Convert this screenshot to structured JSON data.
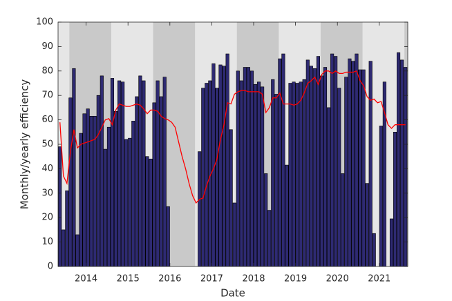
{
  "chart_data": {
    "type": "bar",
    "xlabel": "Date",
    "ylabel": "Monthly/yearly efficiency",
    "xlim": [
      2013.33,
      2021.68
    ],
    "xticks": [
      2014,
      2015,
      2016,
      2017,
      2018,
      2019,
      2020,
      2021
    ],
    "ylim": [
      0,
      100
    ],
    "yticks": [
      0,
      10,
      20,
      30,
      40,
      50,
      60,
      70,
      80,
      90,
      100
    ],
    "background_color": "#e6e6e6",
    "bands": [
      {
        "from": 2013.6,
        "to": 2014.6,
        "color": "#c9c9c9"
      },
      {
        "from": 2015.6,
        "to": 2016.6,
        "color": "#c9c9c9"
      },
      {
        "from": 2017.6,
        "to": 2018.6,
        "color": "#c9c9c9"
      },
      {
        "from": 2019.6,
        "to": 2020.6,
        "color": "#c9c9c9"
      },
      {
        "from": 2021.6,
        "to": 2022.6,
        "color": "#c9c9c9"
      }
    ],
    "x": [
      2013.375,
      2013.458,
      2013.542,
      2013.625,
      2013.708,
      2013.792,
      2013.875,
      2013.958,
      2014.042,
      2014.125,
      2014.208,
      2014.292,
      2014.375,
      2014.458,
      2014.542,
      2014.625,
      2014.708,
      2014.792,
      2014.875,
      2014.958,
      2015.042,
      2015.125,
      2015.208,
      2015.292,
      2015.375,
      2015.458,
      2015.542,
      2015.625,
      2015.708,
      2015.792,
      2015.875,
      2015.958,
      2016.042,
      2016.125,
      2016.208,
      2016.292,
      2016.375,
      2016.458,
      2016.542,
      2016.625,
      2016.708,
      2016.792,
      2016.875,
      2016.958,
      2017.042,
      2017.125,
      2017.208,
      2017.292,
      2017.375,
      2017.458,
      2017.542,
      2017.625,
      2017.708,
      2017.792,
      2017.875,
      2017.958,
      2018.042,
      2018.125,
      2018.208,
      2018.292,
      2018.375,
      2018.458,
      2018.542,
      2018.625,
      2018.708,
      2018.792,
      2018.875,
      2018.958,
      2019.042,
      2019.125,
      2019.208,
      2019.292,
      2019.375,
      2019.458,
      2019.542,
      2019.625,
      2019.708,
      2019.792,
      2019.875,
      2019.958,
      2020.042,
      2020.125,
      2020.208,
      2020.292,
      2020.375,
      2020.458,
      2020.542,
      2020.625,
      2020.708,
      2020.792,
      2020.875,
      2020.958,
      2021.042,
      2021.125,
      2021.208,
      2021.292,
      2021.375,
      2021.458,
      2021.542,
      2021.625
    ],
    "series": [
      {
        "type": "bar",
        "color": "#2e2a72",
        "values": [
          49,
          15,
          31,
          69,
          81,
          13,
          54.5,
          62.5,
          64.5,
          61.5,
          61.5,
          70,
          78,
          48,
          57,
          77,
          63.5,
          76,
          75.5,
          52,
          52.5,
          59.5,
          69.5,
          78,
          76,
          45,
          44,
          67,
          76,
          69.5,
          77.5,
          24.5,
          null,
          null,
          null,
          null,
          null,
          null,
          null,
          null,
          47,
          73,
          75,
          76,
          83,
          73,
          82.5,
          82,
          87,
          56,
          26,
          80,
          76,
          81.5,
          81.5,
          80,
          74.5,
          75.5,
          73.5,
          38,
          23,
          76.5,
          70.5,
          85,
          87,
          41.5,
          75,
          75.5,
          75,
          75.5,
          76.5,
          84.5,
          82,
          81,
          86,
          78,
          81.5,
          65,
          87,
          86,
          73,
          38,
          77.5,
          85,
          84,
          87,
          80.5,
          80.5,
          34,
          84,
          13.5,
          null,
          57.5,
          75.5,
          null,
          19.5,
          55,
          87.5,
          84.5,
          81.5
        ]
      },
      {
        "type": "line",
        "color": "#ff0000",
        "values": [
          59,
          37,
          34,
          47,
          56,
          48.5,
          50,
          50.5,
          51,
          51.5,
          52,
          54,
          57,
          60,
          60.5,
          58,
          64,
          66.5,
          66,
          65.5,
          65.5,
          66,
          66.5,
          66,
          64.5,
          62.5,
          64,
          64,
          63.5,
          61.5,
          60.5,
          60,
          59,
          57,
          51,
          45,
          40,
          34,
          29,
          26,
          27.5,
          28,
          33,
          37,
          40,
          44,
          52,
          58,
          67,
          66.5,
          70.5,
          71.5,
          72,
          72,
          71.5,
          71.5,
          71.5,
          71.5,
          70.5,
          63,
          65,
          69,
          69,
          71,
          66.5,
          66.5,
          66.5,
          66,
          66.5,
          68,
          71,
          75,
          76,
          77.5,
          74.5,
          78.5,
          80,
          80,
          79,
          80,
          79,
          79,
          79.5,
          79.5,
          79.5,
          80,
          76,
          74,
          69.5,
          68,
          68.5,
          67,
          67.5,
          63,
          58,
          56.5,
          58,
          58,
          58,
          58
        ]
      }
    ]
  }
}
